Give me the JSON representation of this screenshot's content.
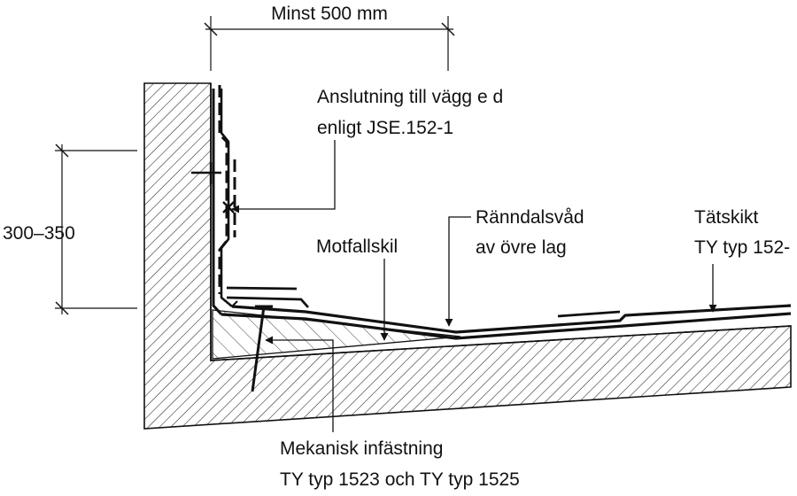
{
  "dimensions": {
    "width_label": "Minst 500 mm",
    "height_label": "300–350"
  },
  "labels": {
    "wall_connection_line1": "Anslutning till vägg e d",
    "wall_connection_line2": "enligt JSE.152-1",
    "counter_slope": "Motfallskil",
    "gutter_sheet_line1": "Ränndalsvåd",
    "gutter_sheet_line2": "av övre lag",
    "membrane_line1": "Tätskikt",
    "membrane_line2": "TY typ 152-",
    "fastening_line1": "Mekanisk infästning",
    "fastening_line2": "TY typ 1523 och TY typ 1525"
  }
}
